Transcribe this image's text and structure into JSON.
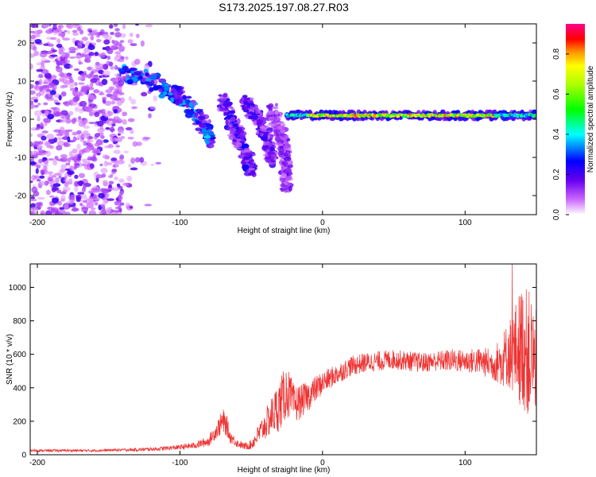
{
  "title": "S173.2025.197.08.27.R03",
  "chart_data": [
    {
      "type": "heatmap",
      "xlabel": "Height of straight line (km)",
      "ylabel": "Frequency (Hz)",
      "xlim": [
        -205,
        150
      ],
      "ylim": [
        -25,
        25
      ],
      "x_ticks": [
        -200,
        -100,
        0,
        100
      ],
      "x_tick_labels": [
        "-200",
        "-100",
        "0",
        "100"
      ],
      "y_ticks": [
        -20,
        -10,
        0,
        10,
        20
      ],
      "y_tick_labels": [
        "-20",
        "-10",
        "0",
        "10",
        "20"
      ],
      "colorbar": {
        "label": "Normalized spectral amplitude",
        "range": [
          0,
          0.95
        ],
        "ticks": [
          0.0,
          0.2,
          0.4,
          0.6,
          0.8
        ],
        "tick_labels": [
          "0.0",
          "0.2",
          "0.4",
          "0.6",
          "0.8"
        ],
        "colormap": "gist_rainbow_r"
      },
      "features": [
        {
          "name": "noise",
          "x_range": [
            -205,
            -140
          ],
          "freq_range": [
            -25,
            25
          ],
          "amplitude": 0.12
        },
        {
          "name": "curved_track",
          "points": [
            [
              -140,
              12
            ],
            [
              -125,
              11
            ],
            [
              -110,
              8
            ],
            [
              -100,
              6
            ],
            [
              -90,
              2
            ],
            [
              -82,
              -2
            ],
            [
              -78,
              -6
            ]
          ],
          "amplitude": 0.25
        },
        {
          "name": "streak_1",
          "points": [
            [
              -70,
              5
            ],
            [
              -62,
              -2
            ],
            [
              -55,
              -8
            ],
            [
              -50,
              -13
            ]
          ],
          "amplitude": 0.18
        },
        {
          "name": "streak_2",
          "points": [
            [
              -55,
              5
            ],
            [
              -45,
              0
            ],
            [
              -38,
              -6
            ],
            [
              -35,
              -11
            ]
          ],
          "amplitude": 0.15
        },
        {
          "name": "streak_3",
          "points": [
            [
              -35,
              2
            ],
            [
              -30,
              -3
            ],
            [
              -26,
              -9
            ],
            [
              -25,
              -18
            ]
          ],
          "amplitude": 0.12
        },
        {
          "name": "carrier",
          "x_range": [
            -25,
            150
          ],
          "freq": 1,
          "amplitude": 0.9
        }
      ]
    },
    {
      "type": "line",
      "xlabel": "Height of straight line (km)",
      "ylabel": "SNR (10 * v/v)",
      "xlim": [
        -205,
        150
      ],
      "ylim": [
        0,
        1140
      ],
      "x_ticks": [
        -200,
        -100,
        0,
        100
      ],
      "x_tick_labels": [
        "-200",
        "-100",
        "0",
        "100"
      ],
      "y_ticks": [
        0,
        200,
        400,
        600,
        800,
        1000
      ],
      "y_tick_labels": [
        "0",
        "200",
        "400",
        "600",
        "800",
        "1000"
      ],
      "line_color": "#ee3333",
      "series": [
        {
          "x": [
            -205,
            -190,
            -175,
            -160,
            -145,
            -130,
            -115,
            -100,
            -90,
            -80,
            -74,
            -70,
            -67,
            -65,
            -60,
            -55,
            -50,
            -45,
            -40,
            -35,
            -30,
            -25,
            -20,
            -15,
            -10,
            -5,
            0,
            10,
            20,
            30,
            40,
            50,
            60,
            70,
            80,
            90,
            100,
            110,
            120,
            125,
            130,
            135,
            140,
            145,
            150
          ],
          "y": [
            25,
            25,
            25,
            25,
            28,
            30,
            35,
            45,
            55,
            80,
            150,
            200,
            170,
            110,
            70,
            50,
            60,
            120,
            180,
            240,
            300,
            380,
            300,
            320,
            350,
            390,
            430,
            480,
            530,
            550,
            560,
            570,
            560,
            550,
            560,
            565,
            560,
            560,
            540,
            560,
            600,
            620,
            650,
            600,
            560
          ],
          "spread": [
            8,
            8,
            8,
            8,
            8,
            10,
            12,
            15,
            20,
            30,
            50,
            80,
            60,
            40,
            25,
            20,
            30,
            60,
            90,
            120,
            160,
            160,
            120,
            100,
            90,
            80,
            70,
            60,
            60,
            60,
            60,
            60,
            60,
            60,
            60,
            70,
            70,
            80,
            100,
            150,
            200,
            280,
            380,
            380,
            300
          ]
        }
      ]
    }
  ]
}
